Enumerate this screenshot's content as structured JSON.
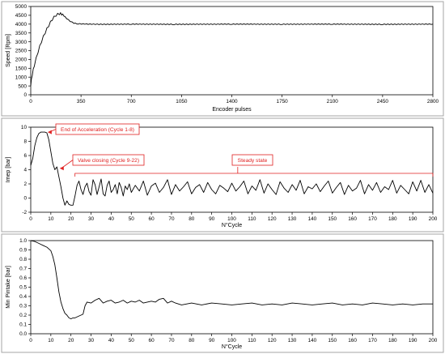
{
  "colors": {
    "line": "#000000",
    "annotation": "#e02020",
    "panel_border": "#a6a6a6",
    "axis": "#000000"
  },
  "chart_data": [
    {
      "type": "line",
      "xlabel": "Encoder pulses",
      "ylabel": "Speed [Rpm]",
      "xlim": [
        0,
        2800
      ],
      "ylim": [
        0,
        5000
      ],
      "xticks": [
        0,
        350,
        700,
        1050,
        1400,
        1750,
        2100,
        2450,
        2800
      ],
      "yticks": [
        0,
        500,
        1000,
        1500,
        2000,
        2500,
        3000,
        3500,
        4000,
        4500,
        5000
      ],
      "grid": false,
      "series": [
        {
          "x": [
            0,
            10,
            25,
            50,
            75,
            100,
            125,
            150,
            175,
            200,
            215,
            230,
            250,
            275,
            300,
            330,
            400,
            500,
            700,
            1000,
            1400,
            1750,
            2100,
            2450,
            2800
          ],
          "values": [
            600,
            1150,
            1700,
            2450,
            3050,
            3550,
            3950,
            4300,
            4530,
            4620,
            4600,
            4480,
            4320,
            4160,
            4060,
            4020,
            4000,
            3990,
            4000,
            3990,
            4000,
            3995,
            4000,
            3990,
            4000
          ]
        }
      ],
      "annotations": []
    },
    {
      "type": "line",
      "xlabel": "N°Cycle",
      "ylabel": "Imep [bar]",
      "xlim": [
        0,
        200
      ],
      "ylim": [
        -2,
        10
      ],
      "xticks": [
        0,
        10,
        20,
        30,
        40,
        50,
        60,
        70,
        80,
        90,
        100,
        110,
        120,
        130,
        140,
        150,
        160,
        170,
        180,
        190,
        200
      ],
      "yticks": [
        -2,
        0,
        2,
        4,
        6,
        8,
        10
      ],
      "grid": false,
      "series": [
        {
          "x": [
            0,
            1,
            2,
            3,
            4,
            5,
            6,
            7,
            8,
            9,
            10,
            11,
            12,
            13,
            14,
            15,
            16,
            17,
            18,
            19,
            20,
            21,
            22,
            23,
            24,
            25,
            26,
            27,
            28,
            29,
            30,
            31,
            32,
            33,
            34,
            35,
            36,
            37,
            38,
            39,
            40,
            41,
            42,
            43,
            44,
            45,
            46,
            47,
            48,
            49,
            50,
            52,
            54,
            56,
            58,
            60,
            62,
            64,
            66,
            68,
            70,
            72,
            74,
            76,
            78,
            80,
            82,
            84,
            86,
            88,
            90,
            92,
            94,
            96,
            98,
            100,
            102,
            104,
            106,
            108,
            110,
            112,
            114,
            116,
            118,
            120,
            122,
            124,
            126,
            128,
            130,
            132,
            134,
            136,
            138,
            140,
            142,
            144,
            146,
            148,
            150,
            152,
            154,
            156,
            158,
            160,
            162,
            164,
            166,
            168,
            170,
            172,
            174,
            176,
            178,
            180,
            182,
            184,
            186,
            188,
            190,
            192,
            194,
            196,
            198,
            200
          ],
          "values": [
            4.6,
            5.6,
            7.4,
            8.5,
            9.1,
            9.3,
            9.3,
            9.3,
            9.2,
            8.2,
            6.5,
            4.9,
            4.0,
            4.4,
            3.0,
            1.6,
            0.0,
            -1.0,
            -0.4,
            -0.9,
            -1.0,
            -1.0,
            0.3,
            1.8,
            2.4,
            1.2,
            0.5,
            1.6,
            2.1,
            0.9,
            0.4,
            2.6,
            1.9,
            0.5,
            1.6,
            2.7,
            0.6,
            0.3,
            1.8,
            2.4,
            0.8,
            1.2,
            1.9,
            0.6,
            2.2,
            1.5,
            0.3,
            1.7,
            1.2,
            2.0,
            0.8,
            1.8,
            1.0,
            2.4,
            0.4,
            1.7,
            2.1,
            0.8,
            1.5,
            2.6,
            0.5,
            1.9,
            1.0,
            1.6,
            2.3,
            0.6,
            1.5,
            1.9,
            0.8,
            2.2,
            1.2,
            0.6,
            1.8,
            1.4,
            0.9,
            2.1,
            1.0,
            1.6,
            2.4,
            0.6,
            1.7,
            1.1,
            2.6,
            0.7,
            2.0,
            1.2,
            0.5,
            2.3,
            1.4,
            0.8,
            1.9,
            1.1,
            2.5,
            0.6,
            1.6,
            1.3,
            2.0,
            0.9,
            1.7,
            2.4,
            0.7,
            1.5,
            2.2,
            0.5,
            1.8,
            1.0,
            1.4,
            2.5,
            0.6,
            1.9,
            1.1,
            2.2,
            0.8,
            1.6,
            1.2,
            2.5,
            0.7,
            1.8,
            1.2,
            0.6,
            2.3,
            1.0,
            2.5,
            0.8,
            1.9,
            0.7
          ]
        }
      ],
      "annotations": [
        {
          "text": "End of Acceleration (Cycle 1-8)",
          "x": 8,
          "y": 9.3
        },
        {
          "text": "Valve closing (Cycle 9-22)",
          "x": 14,
          "y": 4.2
        },
        {
          "text": "Steady state",
          "x_range": [
            22,
            200
          ],
          "y": 2.9
        }
      ]
    },
    {
      "type": "line",
      "xlabel": "N°Cycle",
      "ylabel": "Min Pintake [bar]",
      "xlim": [
        0,
        200
      ],
      "ylim": [
        0,
        1
      ],
      "xticks": [
        0,
        10,
        20,
        30,
        40,
        50,
        60,
        70,
        80,
        90,
        100,
        110,
        120,
        130,
        140,
        150,
        160,
        170,
        180,
        190,
        200
      ],
      "yticks": [
        0.0,
        0.1,
        0.2,
        0.3,
        0.4,
        0.5,
        0.6,
        0.7,
        0.8,
        0.9,
        1.0
      ],
      "grid": false,
      "series": [
        {
          "x": [
            0,
            2,
            4,
            5,
            6,
            8,
            10,
            11,
            12,
            13,
            14,
            15,
            16,
            17,
            18,
            19,
            20,
            21,
            22,
            24,
            26,
            27,
            28,
            30,
            32,
            34,
            36,
            38,
            40,
            42,
            44,
            46,
            48,
            50,
            52,
            54,
            56,
            58,
            60,
            62,
            64,
            66,
            68,
            70,
            72,
            75,
            80,
            85,
            90,
            95,
            100,
            105,
            110,
            115,
            120,
            125,
            130,
            135,
            140,
            145,
            150,
            155,
            160,
            165,
            170,
            175,
            180,
            185,
            190,
            195,
            200
          ],
          "values": [
            1.0,
            0.99,
            0.97,
            0.96,
            0.95,
            0.93,
            0.89,
            0.83,
            0.74,
            0.6,
            0.45,
            0.34,
            0.27,
            0.22,
            0.2,
            0.17,
            0.16,
            0.17,
            0.17,
            0.19,
            0.21,
            0.3,
            0.34,
            0.33,
            0.36,
            0.38,
            0.33,
            0.35,
            0.36,
            0.33,
            0.34,
            0.36,
            0.33,
            0.35,
            0.34,
            0.36,
            0.33,
            0.34,
            0.35,
            0.34,
            0.37,
            0.38,
            0.33,
            0.35,
            0.33,
            0.31,
            0.33,
            0.31,
            0.33,
            0.32,
            0.31,
            0.32,
            0.33,
            0.31,
            0.32,
            0.31,
            0.33,
            0.32,
            0.31,
            0.32,
            0.33,
            0.31,
            0.32,
            0.31,
            0.33,
            0.32,
            0.31,
            0.32,
            0.31,
            0.32,
            0.32
          ]
        }
      ],
      "annotations": []
    }
  ]
}
